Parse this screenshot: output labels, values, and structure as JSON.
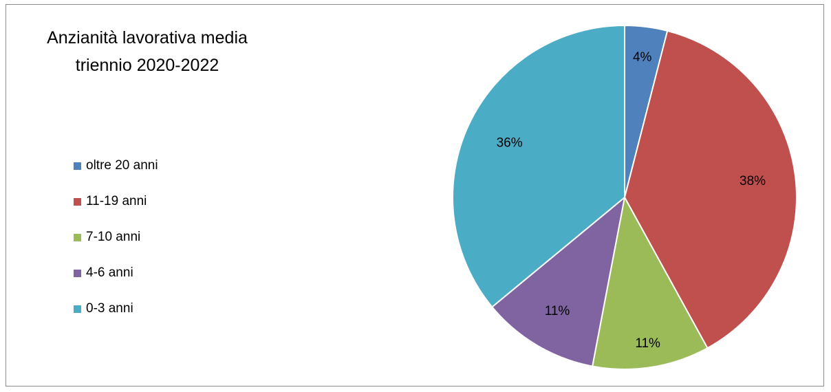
{
  "chart_data": {
    "type": "pie",
    "title": [
      "Anzianità lavorativa media",
      "triennio 2020-2022"
    ],
    "categories": [
      "oltre 20 anni",
      "11-19 anni",
      "7-10 anni",
      "4-6 anni",
      "0-3 anni"
    ],
    "values": [
      4,
      38,
      11,
      11,
      36
    ],
    "value_labels": [
      "4%",
      "38%",
      "11%",
      "11%",
      "36%"
    ],
    "colors": [
      "#4f81bd",
      "#c0504d",
      "#9bbb59",
      "#8064a2",
      "#4bacc6"
    ],
    "legend_position": "left"
  }
}
